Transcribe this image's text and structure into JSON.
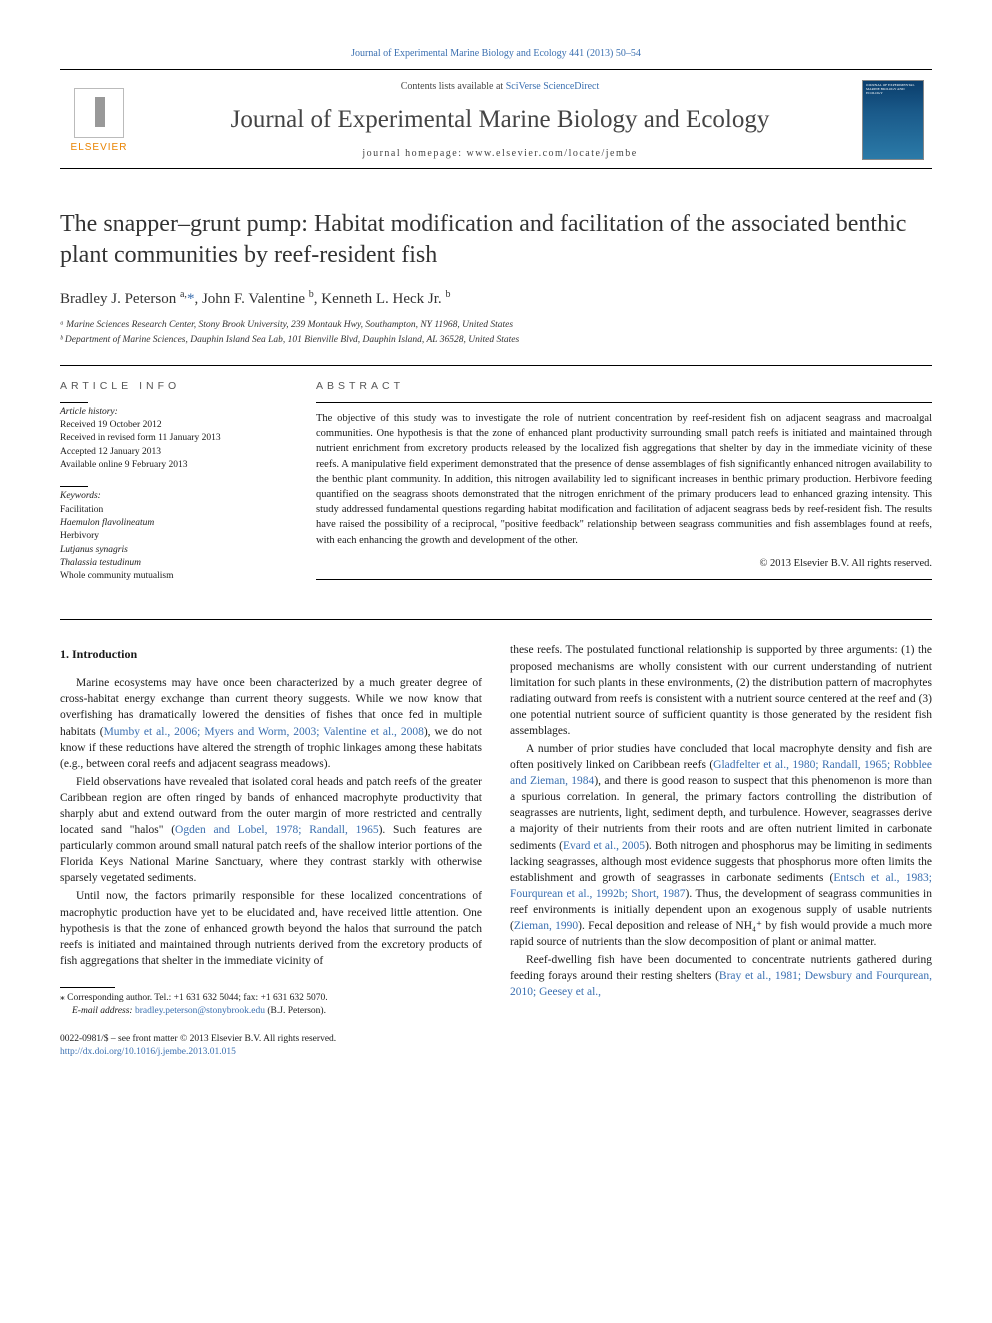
{
  "top_citation": "Journal of Experimental Marine Biology and Ecology 441 (2013) 50–54",
  "masthead": {
    "contents_prefix": "Contents lists available at ",
    "contents_link": "SciVerse ScienceDirect",
    "journal_title": "Journal of Experimental Marine Biology and Ecology",
    "homepage_prefix": "journal homepage: ",
    "homepage_url": "www.elsevier.com/locate/jembe",
    "elsevier_label": "ELSEVIER",
    "cover_text": "JOURNAL OF EXPERIMENTAL MARINE BIOLOGY AND ECOLOGY"
  },
  "title": "The snapper–grunt pump: Habitat modification and facilitation of the associated benthic plant communities by reef-resident fish",
  "authors_html": "Bradley J. Peterson <sup>a,</sup><span class='corr'>*</span>, John F. Valentine <sup>b</sup>, Kenneth L. Heck Jr. <sup>b</sup>",
  "affiliations": [
    "ᵃ Marine Sciences Research Center, Stony Brook University, 239 Montauk Hwy, Southampton, NY 11968, United States",
    "ᵇ Department of Marine Sciences, Dauphin Island Sea Lab, 101 Bienville Blvd, Dauphin Island, AL 36528, United States"
  ],
  "info_heading": "ARTICLE INFO",
  "abstract_heading": "ABSTRACT",
  "history": {
    "label": "Article history:",
    "lines": [
      "Received 19 October 2012",
      "Received in revised form 11 January 2013",
      "Accepted 12 January 2013",
      "Available online 9 February 2013"
    ]
  },
  "keywords": {
    "label": "Keywords:",
    "items": [
      "Facilitation",
      "Haemulon flavolineatum",
      "Herbivory",
      "Lutjanus synagris",
      "Thalassia testudinum",
      "Whole community mutualism"
    ]
  },
  "abstract": "The objective of this study was to investigate the role of nutrient concentration by reef-resident fish on adjacent seagrass and macroalgal communities. One hypothesis is that the zone of enhanced plant productivity surrounding small patch reefs is initiated and maintained through nutrient enrichment from excretory products released by the localized fish aggregations that shelter by day in the immediate vicinity of these reefs. A manipulative field experiment demonstrated that the presence of dense assemblages of fish significantly enhanced nitrogen availability to the benthic plant community. In addition, this nitrogen availability led to significant increases in benthic primary production. Herbivore feeding quantified on the seagrass shoots demonstrated that the nitrogen enrichment of the primary producers lead to enhanced grazing intensity. This study addressed fundamental questions regarding habitat modification and facilitation of adjacent seagrass beds by reef-resident fish. The results have raised the possibility of a reciprocal, \"positive feedback\" relationship between seagrass communities and fish assemblages found at reefs, with each enhancing the growth and development of the other.",
  "copyright": "© 2013 Elsevier B.V. All rights reserved.",
  "intro_heading": "1. Introduction",
  "p1a": "Marine ecosystems may have once been characterized by a much greater degree of cross-habitat energy exchange than current theory suggests. While we now know that overfishing has dramatically lowered the densities of fishes that once fed in multiple habitats (",
  "p1_ref": "Mumby et al., 2006; Myers and Worm, 2003; Valentine et al., 2008",
  "p1b": "), we do not know if these reductions have altered the strength of trophic linkages among these habitats (e.g., between coral reefs and adjacent seagrass meadows).",
  "p2a": "Field observations have revealed that isolated coral heads and patch reefs of the greater Caribbean region are often ringed by bands of enhanced macrophyte productivity that sharply abut and extend outward from the outer margin of more restricted and centrally located sand \"halos\" (",
  "p2_ref": "Ogden and Lobel, 1978; Randall, 1965",
  "p2b": "). Such features are particularly common around small natural patch reefs of the shallow interior portions of the Florida Keys National Marine Sanctuary, where they contrast starkly with otherwise sparsely vegetated sediments.",
  "p3": "Until now, the factors primarily responsible for these localized concentrations of macrophytic production have yet to be elucidated and, have received little attention. One hypothesis is that the zone of enhanced growth beyond the halos that surround the patch reefs is initiated and maintained through nutrients derived from the excretory products of fish aggregations that shelter in the immediate vicinity of",
  "p4": "these reefs. The postulated functional relationship is supported by three arguments: (1) the proposed mechanisms are wholly consistent with our current understanding of nutrient limitation for such plants in these environments, (2) the distribution pattern of macrophytes radiating outward from reefs is consistent with a nutrient source centered at the reef and (3) one potential nutrient source of sufficient quantity is those generated by the resident fish assemblages.",
  "p5a": "A number of prior studies have concluded that local macrophyte density and fish are often positively linked on Caribbean reefs (",
  "p5_ref1": "Gladfelter et al., 1980; Randall, 1965; Robblee and Zieman, 1984",
  "p5b": "), and there is good reason to suspect that this phenomenon is more than a spurious correlation. In general, the primary factors controlling the distribution of seagrasses are nutrients, light, sediment depth, and turbulence. However, seagrasses derive a majority of their nutrients from their roots and are often nutrient limited in carbonate sediments (",
  "p5_ref2": "Evard et al., 2005",
  "p5c": "). Both nitrogen and phosphorus may be limiting in sediments lacking seagrasses, although most evidence suggests that phosphorus more often limits the establishment and growth of seagrasses in carbonate sediments (",
  "p5_ref3": "Entsch et al., 1983; Fourqurean et al., 1992b; Short, 1987",
  "p5d": "). Thus, the development of seagrass communities in reef environments is initially dependent upon an exogenous supply of usable nutrients (",
  "p5_ref4": "Zieman, 1990",
  "p5e": "). Fecal deposition and release of NH₄⁺ by fish would provide a much more rapid source of nutrients than the slow decomposition of plant or animal matter.",
  "p6a": "Reef-dwelling fish have been documented to concentrate nutrients gathered during feeding forays around their resting shelters (",
  "p6_ref": "Bray et al., 1981; Dewsbury and Fourqurean, 2010; Geesey et al.,",
  "footnote": {
    "star": "⁎",
    "line1": "Corresponding author. Tel.: +1 631 632 5044; fax: +1 631 632 5070.",
    "email_label": "E-mail address: ",
    "email": "bradley.peterson@stonybrook.edu",
    "email_suffix": " (B.J. Peterson)."
  },
  "bottom": {
    "issn": "0022-0981/$ – see front matter © 2013 Elsevier B.V. All rights reserved.",
    "doi": "http://dx.doi.org/10.1016/j.jembe.2013.01.015"
  },
  "colors": {
    "link": "#3a6fb0",
    "elsevier": "#e98300",
    "text": "#1a1a1a"
  }
}
